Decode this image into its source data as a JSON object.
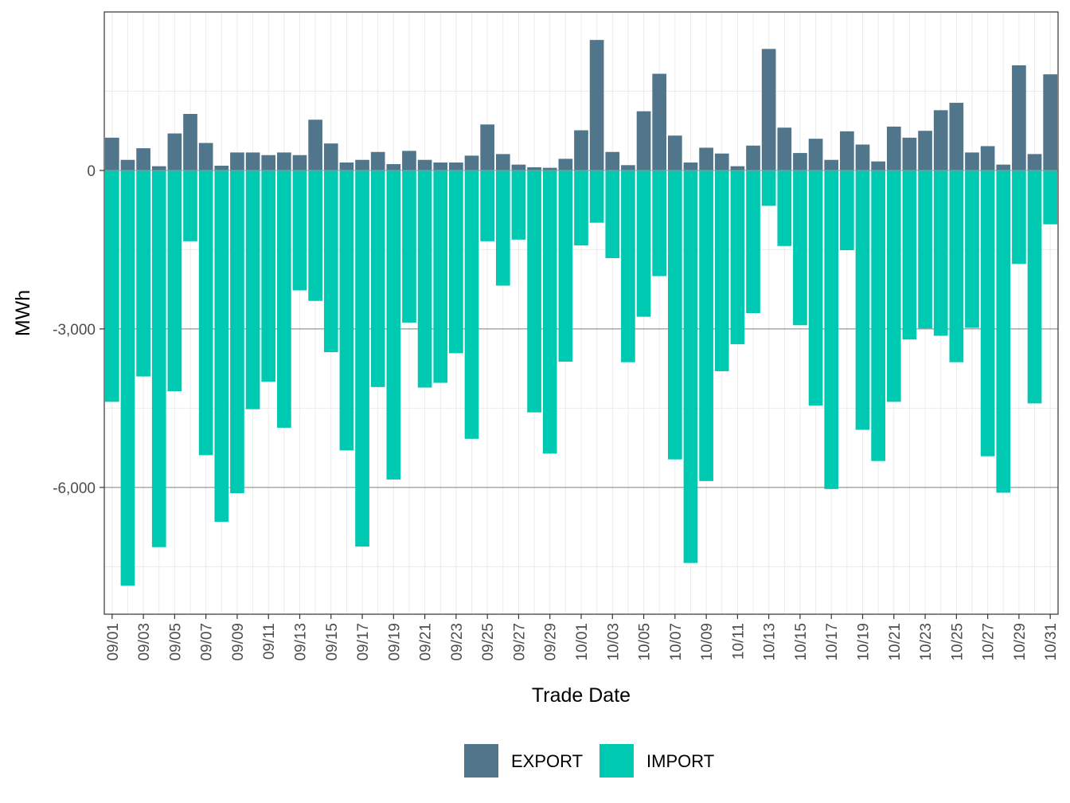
{
  "colors": {
    "export": "#51758b",
    "import": "#00c9b1",
    "grid_minor": "#ebebeb",
    "grid_major": "#7f7f7f",
    "panel_border": "#333333"
  },
  "chart_data": {
    "type": "bar",
    "stacked": true,
    "xlabel": "Trade Date",
    "ylabel": "MWh",
    "ylim": [
      -8400,
      3000
    ],
    "y_ticks": [
      0,
      -3000,
      -6000
    ],
    "y_tick_labels": [
      "0",
      "-3,000",
      "-6,000"
    ],
    "grid": true,
    "legend_position": "bottom",
    "categories": [
      "09/01",
      "09/02",
      "09/03",
      "09/04",
      "09/05",
      "09/06",
      "09/07",
      "09/08",
      "09/09",
      "09/10",
      "09/11",
      "09/12",
      "09/13",
      "09/14",
      "09/15",
      "09/16",
      "09/17",
      "09/18",
      "09/19",
      "09/20",
      "09/21",
      "09/22",
      "09/23",
      "09/24",
      "09/25",
      "09/26",
      "09/27",
      "09/28",
      "09/29",
      "09/30",
      "10/01",
      "10/02",
      "10/03",
      "10/04",
      "10/05",
      "10/06",
      "10/07",
      "10/08",
      "10/09",
      "10/10",
      "10/11",
      "10/12",
      "10/13",
      "10/14",
      "10/15",
      "10/16",
      "10/17",
      "10/18",
      "10/19",
      "10/20",
      "10/21",
      "10/22",
      "10/23",
      "10/24",
      "10/25",
      "10/26",
      "10/27",
      "10/28",
      "10/29",
      "10/30",
      "10/31"
    ],
    "x_tick_labels": [
      "09/01",
      "09/03",
      "09/05",
      "09/07",
      "09/09",
      "09/11",
      "09/13",
      "09/15",
      "09/17",
      "09/19",
      "09/21",
      "09/23",
      "09/25",
      "09/27",
      "09/29",
      "10/01",
      "10/03",
      "10/05",
      "10/07",
      "10/09",
      "10/11",
      "10/13",
      "10/15",
      "10/17",
      "10/19",
      "10/21",
      "10/23",
      "10/25",
      "10/27",
      "10/29",
      "10/31"
    ],
    "series": [
      {
        "name": "EXPORT",
        "values": [
          620,
          200,
          420,
          80,
          700,
          1070,
          520,
          90,
          340,
          340,
          290,
          340,
          290,
          960,
          510,
          150,
          200,
          350,
          120,
          370,
          200,
          150,
          150,
          280,
          870,
          310,
          110,
          60,
          50,
          220,
          760,
          2470,
          350,
          100,
          1120,
          1830,
          660,
          150,
          430,
          320,
          80,
          470,
          2300,
          810,
          330,
          600,
          200,
          740,
          490,
          170,
          830,
          620,
          750,
          1140,
          1280,
          340,
          460,
          110,
          1990,
          310,
          1820
        ]
      },
      {
        "name": "IMPORT",
        "values": [
          -4380,
          -7860,
          -3900,
          -7130,
          -4180,
          -1340,
          -5390,
          -6650,
          -6110,
          -4520,
          -4000,
          -4870,
          -2270,
          -2470,
          -3440,
          -5300,
          -7120,
          -4100,
          -5850,
          -2880,
          -4110,
          -4020,
          -3460,
          -5080,
          -1340,
          -2180,
          -1310,
          -4580,
          -5360,
          -3620,
          -1420,
          -990,
          -1660,
          -3630,
          -2770,
          -2000,
          -5470,
          -7430,
          -5880,
          -3800,
          -3290,
          -2700,
          -670,
          -1430,
          -2930,
          -4450,
          -6030,
          -1510,
          -4910,
          -5500,
          -4380,
          -3200,
          -2990,
          -3130,
          -3630,
          -2980,
          -5410,
          -6100,
          -1770,
          -4410,
          -1020
        ]
      }
    ]
  }
}
